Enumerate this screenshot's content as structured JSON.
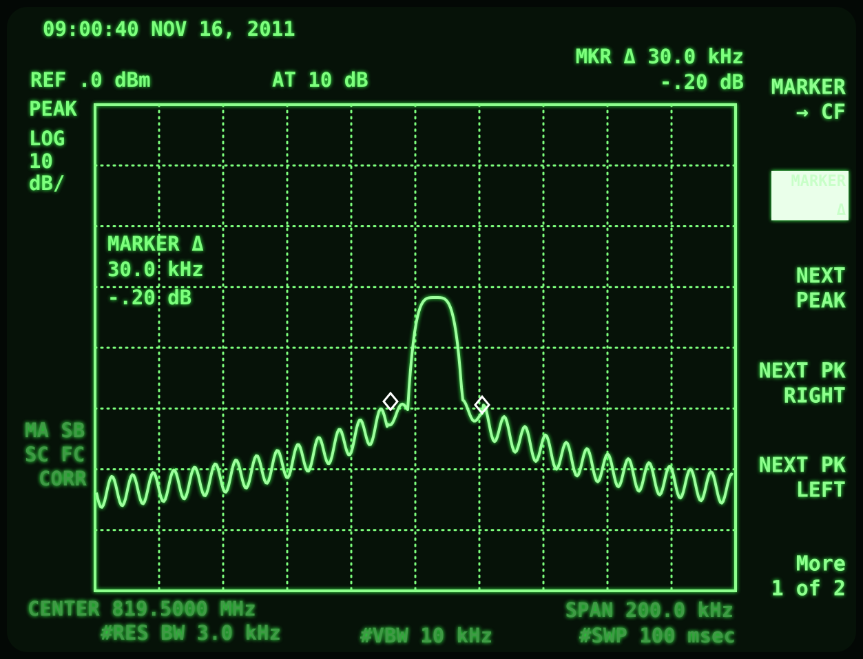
{
  "header": {
    "timestamp": "09:00:40 NOV 16, 2011",
    "reference": "REF .0 dBm",
    "attenuation": "AT 10 dB",
    "marker_readout": [
      "MKR Δ 30.0 kHz",
      "-.20 dB"
    ]
  },
  "left_labels": {
    "detector": "PEAK",
    "scale": [
      "LOG",
      "10",
      "dB/"
    ],
    "status": [
      "MA SB",
      "SC FC",
      "CORR"
    ]
  },
  "marker_box": [
    "MARKER Δ",
    "30.0 kHz",
    "-.20 dB"
  ],
  "footer": {
    "center": "CENTER 819.5000 MHz",
    "res_bw": "#RES BW 3.0 kHz",
    "vbw": "#VBW 10 kHz",
    "span": "SPAN 200.0 kHz",
    "sweep": "#SWP 100 msec"
  },
  "softkeys": [
    [
      "MARKER",
      "→ CF"
    ],
    [
      "MARKER",
      "Δ"
    ],
    [
      "NEXT",
      "PEAK"
    ],
    [
      "NEXT PK",
      "RIGHT"
    ],
    [
      "NEXT PK",
      "LEFT"
    ],
    [
      "More",
      "1 of 2"
    ]
  ]
}
